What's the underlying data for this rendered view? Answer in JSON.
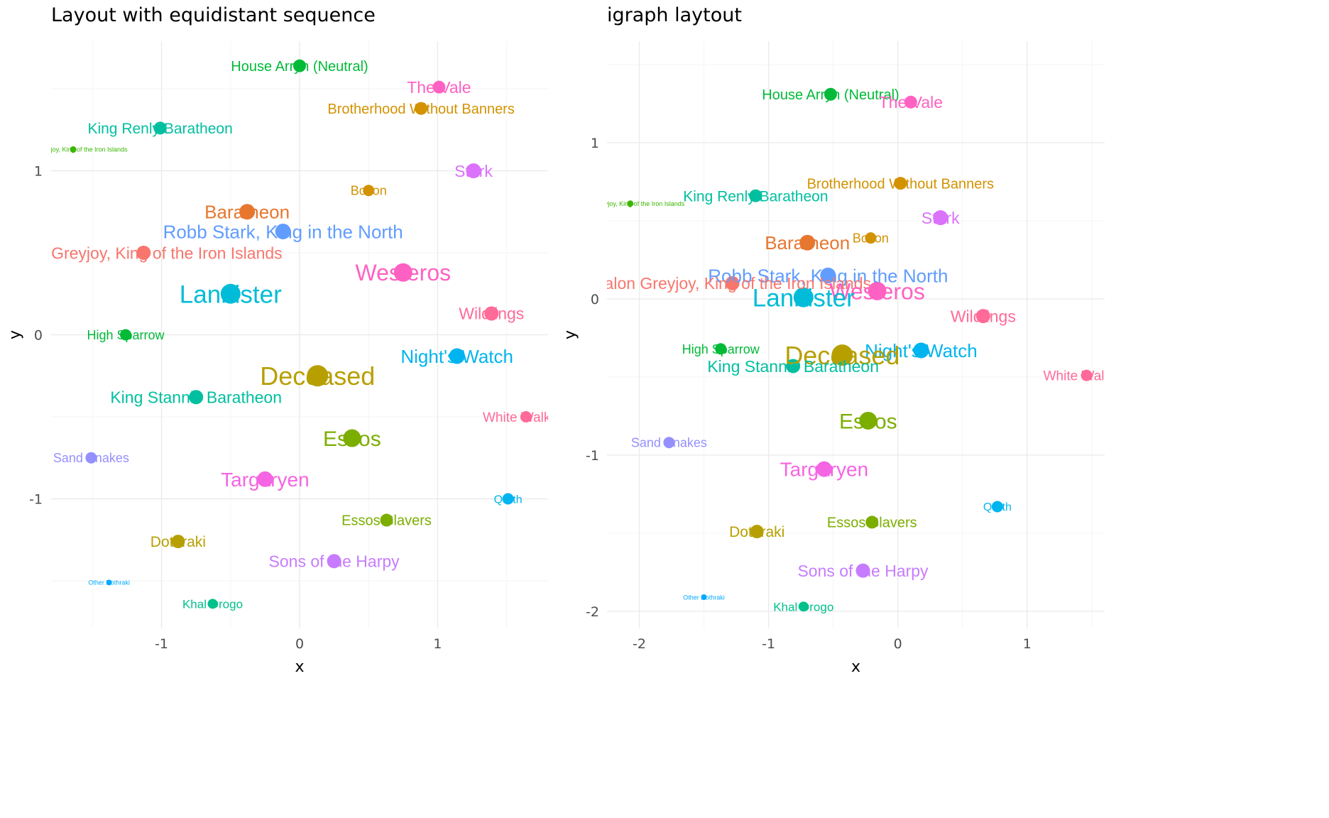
{
  "chart_data": [
    {
      "type": "scatter",
      "title": "Layout with equidistant sequence",
      "xlabel": "x",
      "ylabel": "y",
      "xlim": [
        -1.8,
        1.8
      ],
      "ylim": [
        -1.79,
        1.79
      ],
      "x_ticks": [
        "-1",
        "0",
        "1"
      ],
      "x_tick_values": [
        -1,
        0,
        1
      ],
      "y_ticks": [
        "1",
        "0",
        "-1"
      ],
      "y_tick_values": [
        1,
        0,
        -1
      ],
      "grid": true,
      "legend": "none",
      "points": [
        {
          "label": "House Arryn (Neutral)",
          "x": 0.0,
          "y": 1.64,
          "size": 9,
          "font": 20,
          "color": "#00BA38"
        },
        {
          "label": "The Vale",
          "x": 1.01,
          "y": 1.51,
          "size": 9,
          "font": 23,
          "color": "#FF61C3"
        },
        {
          "label": "Brotherhood Without Banners",
          "x": 0.88,
          "y": 1.38,
          "size": 9,
          "font": 20,
          "color": "#D39200"
        },
        {
          "label": "King Renly Baratheon",
          "x": -1.01,
          "y": 1.26,
          "size": 9,
          "font": 21,
          "color": "#00BFA0"
        },
        {
          "label": "Balon Greyjoy, King of the Iron Islands",
          "x": -1.64,
          "y": 1.13,
          "size": 4.5,
          "font": 9,
          "color": "#39B600"
        },
        {
          "label": "Stark",
          "x": 1.26,
          "y": 1.0,
          "size": 10.5,
          "font": 23,
          "color": "#DB72FB"
        },
        {
          "label": "Bolton",
          "x": 0.5,
          "y": 0.88,
          "size": 8,
          "font": 18,
          "color": "#D39200"
        },
        {
          "label": "Baratheon",
          "x": -0.38,
          "y": 0.75,
          "size": 11,
          "font": 26,
          "color": "#E7772F"
        },
        {
          "label": "Robb Stark, King in the North",
          "x": -0.12,
          "y": 0.63,
          "size": 11,
          "font": 26,
          "color": "#619CFF"
        },
        {
          "label": "Balon Greyjoy, King of the Iron Islands",
          "x": -1.13,
          "y": 0.5,
          "size": 10,
          "font": 23,
          "color": "#F8766D"
        },
        {
          "label": "Westeros",
          "x": 0.75,
          "y": 0.38,
          "size": 13,
          "font": 32,
          "color": "#FF61C3"
        },
        {
          "label": "Lannister",
          "x": -0.5,
          "y": 0.25,
          "size": 14,
          "font": 35,
          "color": "#00BCD8"
        },
        {
          "label": "Wildlings",
          "x": 1.39,
          "y": 0.13,
          "size": 10,
          "font": 23,
          "color": "#FF6A98"
        },
        {
          "label": "High Sparrow",
          "x": -1.26,
          "y": 0.0,
          "size": 8,
          "font": 18,
          "color": "#00BA38"
        },
        {
          "label": "Night's Watch",
          "x": 1.14,
          "y": -0.13,
          "size": 11,
          "font": 26,
          "color": "#00B4EF"
        },
        {
          "label": "Deceased",
          "x": 0.13,
          "y": -0.25,
          "size": 15,
          "font": 36,
          "color": "#B79F00"
        },
        {
          "label": "King Stannis Baratheon",
          "x": -0.75,
          "y": -0.38,
          "size": 10,
          "font": 23,
          "color": "#00BFA0"
        },
        {
          "label": "White Walkers",
          "x": 1.64,
          "y": -0.5,
          "size": 8,
          "font": 19,
          "color": "#FF6A98"
        },
        {
          "label": "Essos",
          "x": 0.38,
          "y": -0.63,
          "size": 12.5,
          "font": 30,
          "color": "#7CAE00"
        },
        {
          "label": "Sand Snakes",
          "x": -1.51,
          "y": -0.75,
          "size": 8,
          "font": 18,
          "color": "#9590FF"
        },
        {
          "label": "Targaryen",
          "x": -0.25,
          "y": -0.88,
          "size": 11,
          "font": 28,
          "color": "#F564E3"
        },
        {
          "label": "Qarth",
          "x": 1.51,
          "y": -1.0,
          "size": 8,
          "font": 16,
          "color": "#00B4EF"
        },
        {
          "label": "Essos Slavers",
          "x": 0.63,
          "y": -1.13,
          "size": 9,
          "font": 20,
          "color": "#7CAE00"
        },
        {
          "label": "Dothraki",
          "x": -0.88,
          "y": -1.26,
          "size": 9.5,
          "font": 21,
          "color": "#B79F00"
        },
        {
          "label": "Sons of the Harpy",
          "x": 0.25,
          "y": -1.38,
          "size": 10,
          "font": 23,
          "color": "#C77CFF"
        },
        {
          "label": "Other Dothraki",
          "x": -1.38,
          "y": -1.51,
          "size": 4,
          "font": 9,
          "color": "#00A9FF"
        },
        {
          "label": "Khal Drogo",
          "x": -0.63,
          "y": -1.64,
          "size": 7,
          "font": 17,
          "color": "#00C08B"
        }
      ]
    },
    {
      "type": "scatter",
      "title": "igraph laytout",
      "xlabel": "x",
      "ylabel": "y",
      "xlim": [
        -2.25,
        1.6
      ],
      "ylim": [
        -2.11,
        1.65
      ],
      "x_ticks": [
        "-2",
        "-1",
        "0",
        "1"
      ],
      "x_tick_values": [
        -2,
        -1,
        0,
        1
      ],
      "y_ticks": [
        "1",
        "0",
        "-1",
        "-2"
      ],
      "y_tick_values": [
        1,
        0,
        -1,
        -2
      ],
      "grid": true,
      "legend": "none",
      "points": [
        {
          "label": "House Arryn (Neutral)",
          "x": -0.52,
          "y": 1.31,
          "size": 9,
          "font": 20,
          "color": "#00BA38"
        },
        {
          "label": "The Vale",
          "x": 0.1,
          "y": 1.26,
          "size": 9,
          "font": 23,
          "color": "#FF61C3"
        },
        {
          "label": "Brotherhood Without Banners",
          "x": 0.02,
          "y": 0.74,
          "size": 9,
          "font": 20,
          "color": "#D39200"
        },
        {
          "label": "King Renly Baratheon",
          "x": -1.1,
          "y": 0.66,
          "size": 9,
          "font": 21,
          "color": "#00BFA0"
        },
        {
          "label": "Balon Greyjoy, King of the Iron Islands",
          "x": -2.07,
          "y": 0.61,
          "size": 4.5,
          "font": 9,
          "color": "#39B600"
        },
        {
          "label": "Stark",
          "x": 0.33,
          "y": 0.52,
          "size": 10.5,
          "font": 23,
          "color": "#DB72FB"
        },
        {
          "label": "Bolton",
          "x": -0.21,
          "y": 0.39,
          "size": 8,
          "font": 18,
          "color": "#D39200"
        },
        {
          "label": "Baratheon",
          "x": -0.7,
          "y": 0.36,
          "size": 11,
          "font": 26,
          "color": "#E7772F"
        },
        {
          "label": "Robb Stark, King in the North",
          "x": -0.54,
          "y": 0.15,
          "size": 11,
          "font": 26,
          "color": "#619CFF"
        },
        {
          "label": "Balon Greyjoy, King of the Iron Islands",
          "x": -1.28,
          "y": 0.1,
          "size": 10,
          "font": 23,
          "color": "#F8766D"
        },
        {
          "label": "Westeros",
          "x": -0.16,
          "y": 0.05,
          "size": 13,
          "font": 32,
          "color": "#FF61C3"
        },
        {
          "label": "Lannister",
          "x": -0.73,
          "y": 0.01,
          "size": 14,
          "font": 35,
          "color": "#00BCD8"
        },
        {
          "label": "Wildlings",
          "x": 0.66,
          "y": -0.11,
          "size": 10,
          "font": 23,
          "color": "#FF6A98"
        },
        {
          "label": "High Sparrow",
          "x": -1.37,
          "y": -0.32,
          "size": 8,
          "font": 18,
          "color": "#00BA38"
        },
        {
          "label": "Night's Watch",
          "x": 0.18,
          "y": -0.33,
          "size": 11,
          "font": 26,
          "color": "#00B4EF"
        },
        {
          "label": "Deceased",
          "x": -0.43,
          "y": -0.36,
          "size": 15,
          "font": 36,
          "color": "#B79F00"
        },
        {
          "label": "King Stannis Baratheon",
          "x": -0.81,
          "y": -0.43,
          "size": 10,
          "font": 23,
          "color": "#00BFA0"
        },
        {
          "label": "White Walkers",
          "x": 1.46,
          "y": -0.49,
          "size": 8,
          "font": 19,
          "color": "#FF6A98"
        },
        {
          "label": "Essos",
          "x": -0.23,
          "y": -0.78,
          "size": 12.5,
          "font": 30,
          "color": "#7CAE00"
        },
        {
          "label": "Sand Snakes",
          "x": -1.77,
          "y": -0.92,
          "size": 8,
          "font": 18,
          "color": "#9590FF"
        },
        {
          "label": "Targaryen",
          "x": -0.57,
          "y": -1.09,
          "size": 11,
          "font": 28,
          "color": "#F564E3"
        },
        {
          "label": "Qarth",
          "x": 0.77,
          "y": -1.33,
          "size": 8,
          "font": 16,
          "color": "#00B4EF"
        },
        {
          "label": "Essos Slavers",
          "x": -0.2,
          "y": -1.43,
          "size": 9,
          "font": 20,
          "color": "#7CAE00"
        },
        {
          "label": "Dothraki",
          "x": -1.09,
          "y": -1.49,
          "size": 9.5,
          "font": 21,
          "color": "#B79F00"
        },
        {
          "label": "Sons of the Harpy",
          "x": -0.27,
          "y": -1.74,
          "size": 10,
          "font": 23,
          "color": "#C77CFF"
        },
        {
          "label": "Other Dothraki",
          "x": -1.5,
          "y": -1.91,
          "size": 4,
          "font": 9,
          "color": "#00A9FF"
        },
        {
          "label": "Khal Drogo",
          "x": -0.73,
          "y": -1.97,
          "size": 7,
          "font": 17,
          "color": "#00C08B"
        }
      ]
    }
  ]
}
